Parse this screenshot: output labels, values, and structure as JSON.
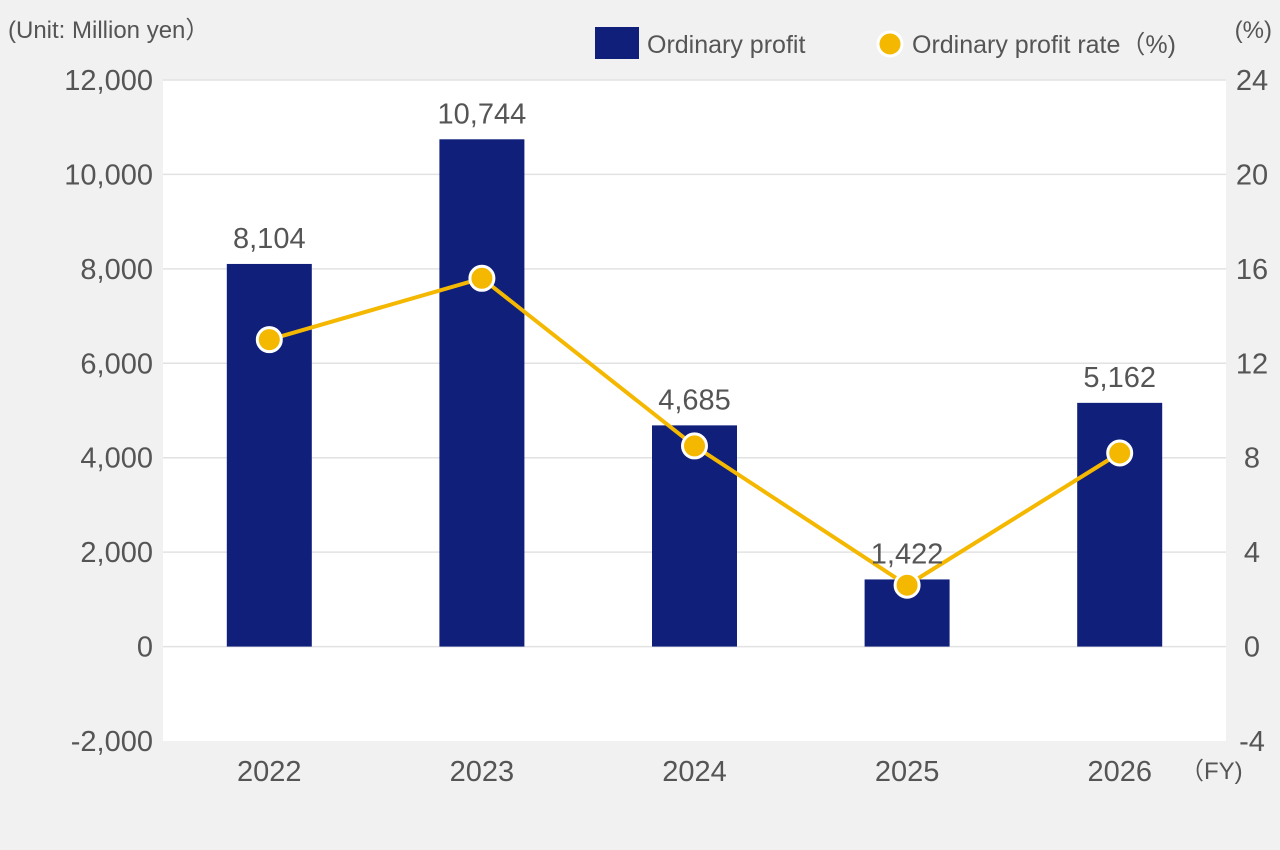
{
  "chart_data": {
    "type": "bar",
    "categories": [
      "2022",
      "2023",
      "2024",
      "2025",
      "2026"
    ],
    "series": [
      {
        "name": "Ordinary profit",
        "type": "bar",
        "axis": "left",
        "color": "#0f1f7a",
        "values": [
          8104,
          10744,
          4685,
          1422,
          5162
        ],
        "data_labels": [
          "8,104",
          "10,744",
          "4,685",
          "1,422",
          "5,162"
        ]
      },
      {
        "name": "Ordinary profit rate（%)",
        "type": "line",
        "axis": "right",
        "color": "#f5b800",
        "values": [
          13.0,
          15.6,
          8.5,
          2.6,
          8.2
        ]
      }
    ],
    "left_axis": {
      "label": "(Unit: Million yen）",
      "ylim": [
        -2000,
        12000
      ],
      "ticks": [
        -2000,
        0,
        2000,
        4000,
        6000,
        8000,
        10000,
        12000
      ],
      "tick_labels": [
        "-2,000",
        "0",
        "2,000",
        "4,000",
        "6,000",
        "8,000",
        "10,000",
        "12,000"
      ]
    },
    "right_axis": {
      "label": "(%)",
      "ylim": [
        -4,
        24
      ],
      "ticks": [
        -4,
        0,
        4,
        8,
        12,
        16,
        20,
        24
      ],
      "tick_labels": [
        "-4",
        "0",
        "4",
        "8",
        "12",
        "16",
        "20",
        "24"
      ]
    },
    "x_axis_unit": "（FY)",
    "grid": true,
    "legend_position": "top-right"
  }
}
